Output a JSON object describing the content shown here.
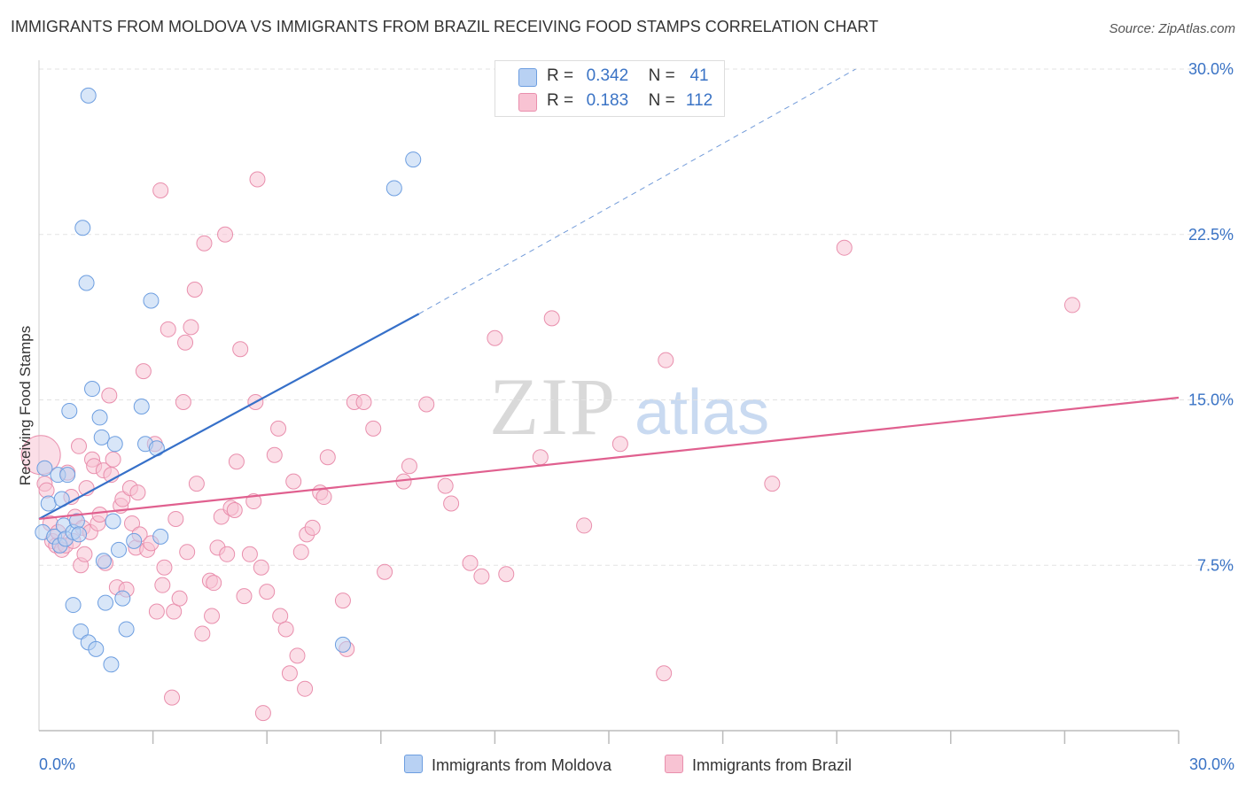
{
  "title": "IMMIGRANTS FROM MOLDOVA VS IMMIGRANTS FROM BRAZIL RECEIVING FOOD STAMPS CORRELATION CHART",
  "source": "Source: ZipAtlas.com",
  "watermark": {
    "zip": "ZIP",
    "atlas": "atlas"
  },
  "legend": {
    "r_label": "R =",
    "n_label": "N =",
    "moldova": {
      "r": "0.342",
      "n": "41"
    },
    "brazil": {
      "r": "0.183",
      "n": "112"
    }
  },
  "bottom_legend": {
    "moldova": "Immigrants from Moldova",
    "brazil": "Immigrants from Brazil"
  },
  "colors": {
    "moldova_fill": "#b8d1f3",
    "moldova_stroke": "#6d9ee0",
    "moldova_line": "#3670c9",
    "brazil_fill": "#f8c3d3",
    "brazil_stroke": "#e98fad",
    "brazil_line": "#e0608f",
    "axis_text": "#3a73c5",
    "grid": "#e3e3e3"
  },
  "chart_data": {
    "type": "scatter",
    "ylabel": "Receiving Food Stamps",
    "xlim": [
      0,
      30
    ],
    "ylim": [
      0,
      30
    ],
    "x_tick_labels": [
      "0.0%",
      "30.0%"
    ],
    "y_ticks": [
      7.5,
      15,
      22.5,
      30
    ],
    "y_tick_labels": [
      "7.5%",
      "15.0%",
      "22.5%",
      "30.0%"
    ],
    "grid": true,
    "legend_position": "top-center",
    "series": [
      {
        "name": "Immigrants from Moldova",
        "r": 0.342,
        "n": 41,
        "trend": {
          "x0": 0,
          "y0": 9.6,
          "x1": 10,
          "y1": 18.9,
          "dashed_to_x": 21.5,
          "dashed_to_y": 30.0
        },
        "points": [
          [
            0.1,
            9.0
          ],
          [
            0.15,
            11.9
          ],
          [
            0.25,
            10.3
          ],
          [
            0.4,
            8.8
          ],
          [
            0.5,
            11.6
          ],
          [
            0.55,
            8.4
          ],
          [
            0.6,
            10.5
          ],
          [
            0.65,
            9.3
          ],
          [
            0.7,
            8.7
          ],
          [
            0.9,
            9.0
          ],
          [
            0.75,
            11.6
          ],
          [
            0.8,
            14.5
          ],
          [
            0.9,
            5.7
          ],
          [
            1.0,
            9.5
          ],
          [
            1.05,
            8.9
          ],
          [
            1.1,
            4.5
          ],
          [
            1.15,
            22.8
          ],
          [
            1.25,
            20.3
          ],
          [
            1.3,
            4.0
          ],
          [
            1.4,
            15.5
          ],
          [
            1.5,
            3.7
          ],
          [
            1.6,
            14.2
          ],
          [
            1.65,
            13.3
          ],
          [
            1.7,
            7.7
          ],
          [
            1.75,
            5.8
          ],
          [
            1.9,
            3.0
          ],
          [
            1.95,
            9.5
          ],
          [
            2.0,
            13.0
          ],
          [
            2.1,
            8.2
          ],
          [
            2.2,
            6.0
          ],
          [
            2.3,
            4.6
          ],
          [
            2.5,
            8.6
          ],
          [
            2.7,
            14.7
          ],
          [
            2.8,
            13.0
          ],
          [
            2.95,
            19.5
          ],
          [
            3.1,
            12.8
          ],
          [
            3.2,
            8.8
          ],
          [
            8.0,
            3.9
          ],
          [
            9.35,
            24.6
          ],
          [
            9.85,
            25.9
          ],
          [
            1.3,
            28.8
          ]
        ]
      },
      {
        "name": "Immigrants from Brazil",
        "r": 0.183,
        "n": 112,
        "trend": {
          "x0": 0,
          "y0": 9.6,
          "x1": 30,
          "y1": 15.1
        },
        "points": [
          [
            0.05,
            12.5
          ],
          [
            0.15,
            11.2
          ],
          [
            0.2,
            10.9
          ],
          [
            0.3,
            9.4
          ],
          [
            0.35,
            8.6
          ],
          [
            0.45,
            8.4
          ],
          [
            0.5,
            9.0
          ],
          [
            0.6,
            8.2
          ],
          [
            0.7,
            8.4
          ],
          [
            0.75,
            11.7
          ],
          [
            0.85,
            10.6
          ],
          [
            0.9,
            8.6
          ],
          [
            0.95,
            9.7
          ],
          [
            1.05,
            12.9
          ],
          [
            1.1,
            7.5
          ],
          [
            1.15,
            9.2
          ],
          [
            1.2,
            8.0
          ],
          [
            1.25,
            11.0
          ],
          [
            1.35,
            9.0
          ],
          [
            1.4,
            12.3
          ],
          [
            1.45,
            12.0
          ],
          [
            1.55,
            9.4
          ],
          [
            1.6,
            9.8
          ],
          [
            1.7,
            11.8
          ],
          [
            1.75,
            7.6
          ],
          [
            1.85,
            15.2
          ],
          [
            1.9,
            11.6
          ],
          [
            1.95,
            12.3
          ],
          [
            2.05,
            6.5
          ],
          [
            2.15,
            10.2
          ],
          [
            2.2,
            10.5
          ],
          [
            2.3,
            6.4
          ],
          [
            2.4,
            11.0
          ],
          [
            2.45,
            9.4
          ],
          [
            2.55,
            8.3
          ],
          [
            2.6,
            10.8
          ],
          [
            2.65,
            8.9
          ],
          [
            2.75,
            16.3
          ],
          [
            2.85,
            8.2
          ],
          [
            2.95,
            8.5
          ],
          [
            3.05,
            13.0
          ],
          [
            3.1,
            5.4
          ],
          [
            3.2,
            24.5
          ],
          [
            3.25,
            6.6
          ],
          [
            3.3,
            7.4
          ],
          [
            3.4,
            18.2
          ],
          [
            3.5,
            1.5
          ],
          [
            3.55,
            5.4
          ],
          [
            3.6,
            9.6
          ],
          [
            3.7,
            6.0
          ],
          [
            3.8,
            14.9
          ],
          [
            3.85,
            17.6
          ],
          [
            3.9,
            8.1
          ],
          [
            4.0,
            18.3
          ],
          [
            4.1,
            20.0
          ],
          [
            4.15,
            11.2
          ],
          [
            4.3,
            4.4
          ],
          [
            4.35,
            22.1
          ],
          [
            4.5,
            6.8
          ],
          [
            4.55,
            5.2
          ],
          [
            4.6,
            6.7
          ],
          [
            4.7,
            8.3
          ],
          [
            4.8,
            9.7
          ],
          [
            4.9,
            22.5
          ],
          [
            4.95,
            8.0
          ],
          [
            5.05,
            10.1
          ],
          [
            5.15,
            10.0
          ],
          [
            5.2,
            12.2
          ],
          [
            5.3,
            17.3
          ],
          [
            5.4,
            6.1
          ],
          [
            5.55,
            8.0
          ],
          [
            5.65,
            10.4
          ],
          [
            5.7,
            14.9
          ],
          [
            5.75,
            25.0
          ],
          [
            5.85,
            7.4
          ],
          [
            5.9,
            0.8
          ],
          [
            6.0,
            6.3
          ],
          [
            6.2,
            12.5
          ],
          [
            6.3,
            13.7
          ],
          [
            6.35,
            5.2
          ],
          [
            6.5,
            4.6
          ],
          [
            6.6,
            2.6
          ],
          [
            6.7,
            11.3
          ],
          [
            6.8,
            3.4
          ],
          [
            6.9,
            8.1
          ],
          [
            7.0,
            1.9
          ],
          [
            7.05,
            8.9
          ],
          [
            7.2,
            9.2
          ],
          [
            7.4,
            10.8
          ],
          [
            7.5,
            10.6
          ],
          [
            7.6,
            12.4
          ],
          [
            8.0,
            5.9
          ],
          [
            8.1,
            3.7
          ],
          [
            8.3,
            14.9
          ],
          [
            8.55,
            14.9
          ],
          [
            8.8,
            13.7
          ],
          [
            9.1,
            7.2
          ],
          [
            9.6,
            11.3
          ],
          [
            9.75,
            12.0
          ],
          [
            10.2,
            14.8
          ],
          [
            10.7,
            11.1
          ],
          [
            10.85,
            10.3
          ],
          [
            11.35,
            7.6
          ],
          [
            11.65,
            7.0
          ],
          [
            12.0,
            17.8
          ],
          [
            12.3,
            7.1
          ],
          [
            13.2,
            12.4
          ],
          [
            13.5,
            18.7
          ],
          [
            14.35,
            9.3
          ],
          [
            15.3,
            13.0
          ],
          [
            16.5,
            16.8
          ],
          [
            16.45,
            2.6
          ],
          [
            19.3,
            11.2
          ],
          [
            21.2,
            21.9
          ],
          [
            27.2,
            19.3
          ]
        ]
      }
    ]
  }
}
